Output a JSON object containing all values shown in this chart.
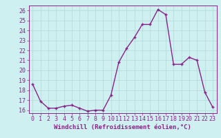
{
  "x": [
    0,
    1,
    2,
    3,
    4,
    5,
    6,
    7,
    8,
    9,
    10,
    11,
    12,
    13,
    14,
    15,
    16,
    17,
    18,
    19,
    20,
    21,
    22,
    23
  ],
  "y": [
    18.6,
    16.9,
    16.2,
    16.2,
    16.4,
    16.5,
    16.2,
    15.9,
    16.0,
    16.0,
    17.5,
    20.8,
    22.2,
    23.3,
    24.6,
    24.6,
    26.1,
    25.6,
    20.6,
    20.6,
    21.3,
    21.0,
    17.8,
    16.3
  ],
  "line_color": "#882288",
  "marker": "+",
  "markersize": 3,
  "linewidth": 1.0,
  "xlabel": "Windchill (Refroidissement éolien,°C)",
  "ylim": [
    15.7,
    26.5
  ],
  "yticks": [
    16,
    17,
    18,
    19,
    20,
    21,
    22,
    23,
    24,
    25,
    26
  ],
  "xticks": [
    0,
    1,
    2,
    3,
    4,
    5,
    6,
    7,
    8,
    9,
    10,
    11,
    12,
    13,
    14,
    15,
    16,
    17,
    18,
    19,
    20,
    21,
    22,
    23
  ],
  "bg_color": "#cff0f0",
  "grid_color": "#b0d8d8",
  "line_purple": "#882288",
  "xlabel_fontsize": 6.5,
  "tick_fontsize": 6.0,
  "xlim": [
    -0.5,
    23.5
  ]
}
